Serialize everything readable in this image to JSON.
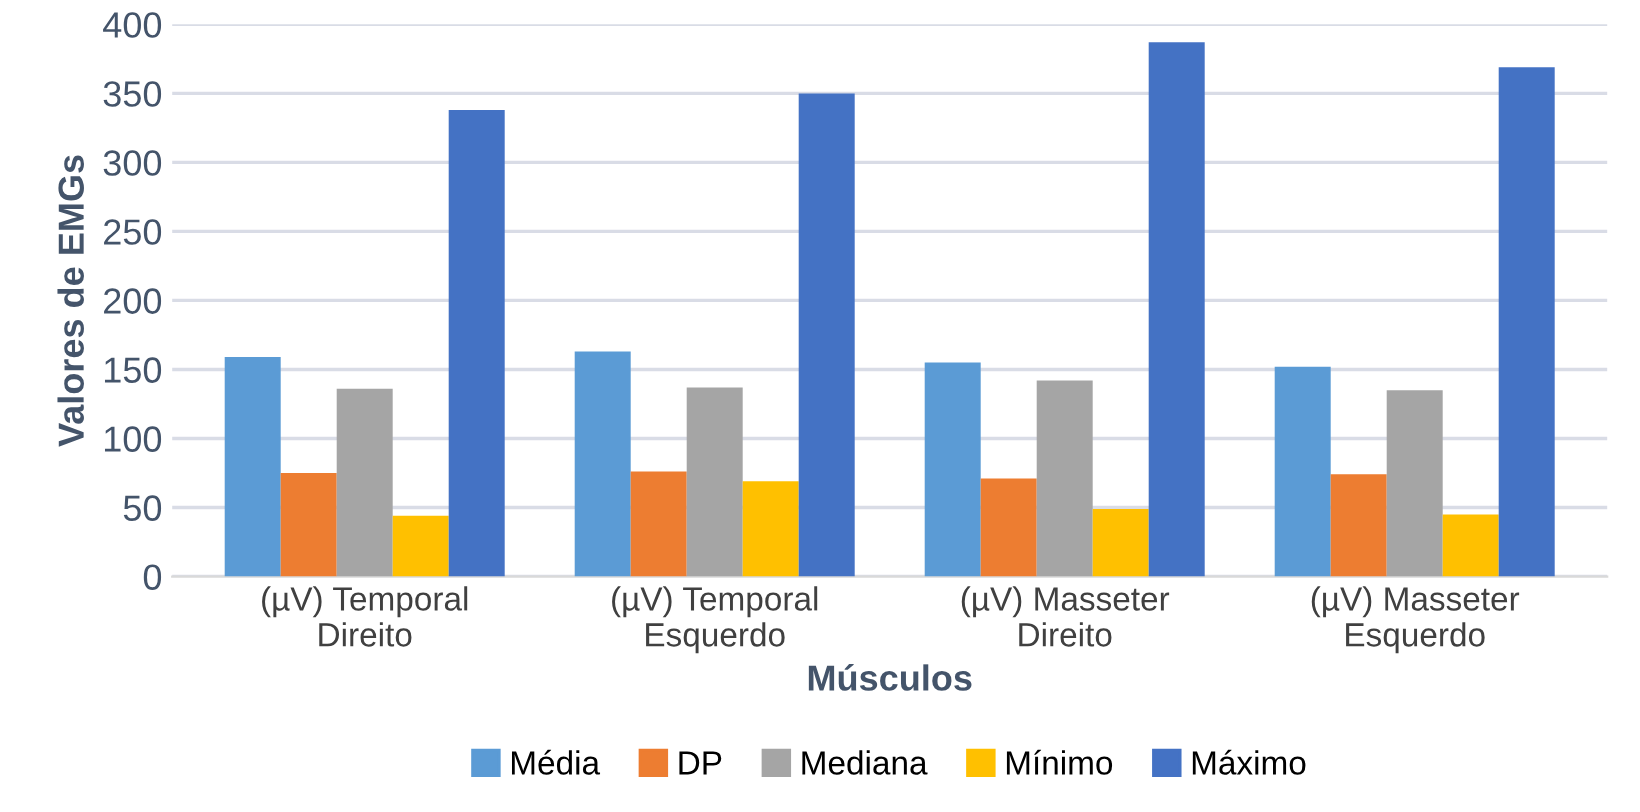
{
  "chart_data": {
    "type": "bar",
    "xlabel": "Músculos",
    "ylabel": "Valores de EMGs",
    "categories": [
      "(µV) Temporal\nDireito",
      "(µV) Temporal\nEsquerdo",
      "(µV) Masseter\nDireito",
      "(µV) Masseter\nEsquerdo"
    ],
    "series": [
      {
        "name": "Média",
        "color": "#5b9bd5",
        "values": [
          159,
          163,
          155,
          152
        ]
      },
      {
        "name": "DP",
        "color": "#ed7d31",
        "values": [
          75,
          76,
          71,
          74
        ]
      },
      {
        "name": "Mediana",
        "color": "#a5a5a5",
        "values": [
          136,
          137,
          142,
          135
        ]
      },
      {
        "name": "Mínimo",
        "color": "#ffc000",
        "values": [
          44,
          69,
          49,
          45
        ]
      },
      {
        "name": "Máximo",
        "color": "#4472c4",
        "values": [
          338,
          350,
          387,
          369
        ]
      }
    ],
    "ylim": [
      0,
      400
    ],
    "yticks": [
      0,
      50,
      100,
      150,
      200,
      250,
      300,
      350,
      400
    ],
    "grid": "y",
    "legend": "bottom"
  }
}
